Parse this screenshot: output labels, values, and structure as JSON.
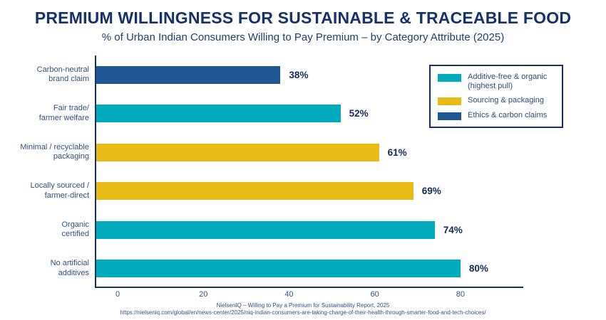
{
  "header": {
    "title": "PREMIUM WILLINGNESS FOR SUSTAINABLE & TRACEABLE FOOD",
    "subtitle": "% of Urban Indian Consumers Willing to Pay Premium – by Category Attribute (2025)"
  },
  "source": {
    "line1": "NielsenIQ – Willing to Pay a Premium for Sustainability Report, 2025",
    "line2": "https://nielseniq.com/global/en/news-center/2025/niq-indian-consumers-are-taking-charge-of-their-health-through-smarter-food-and-tech-choices/"
  },
  "colors": {
    "teal": "#00ABBE",
    "yellow": "#E8BB16",
    "navy_bar": "#1F5795",
    "navy_dark": "#16316B",
    "label_text": "#33517E"
  },
  "chart_data": {
    "type": "bar",
    "orientation": "horizontal",
    "title": "PREMIUM WILLINGNESS FOR SUSTAINABLE & TRACEABLE FOOD",
    "subtitle": "% of Urban Indian Consumers Willing to Pay Premium – by Category Attribute (2025)",
    "categories": [
      "Carbon-neutral brand claim",
      "Fair trade/ farmer welfare",
      "Minimal / recyclable packaging",
      "Locally sourced / farmer-direct",
      "Organic certified",
      "No artificial additives"
    ],
    "category_lines": [
      [
        "Carbon-neutral",
        "brand claim"
      ],
      [
        "Fair trade/",
        "farmer welfare"
      ],
      [
        "Minimal / recyclable",
        "packaging"
      ],
      [
        "Locally sourced /",
        "farmer-direct"
      ],
      [
        "Organic",
        "certified"
      ],
      [
        "No artificial",
        "additives"
      ]
    ],
    "values": [
      38,
      52,
      61,
      69,
      74,
      80
    ],
    "value_labels": [
      "38%",
      "52%",
      "61%",
      "69%",
      "74%",
      "80%"
    ],
    "bar_colors": [
      "#1F5795",
      "#00ABBE",
      "#E8BB16",
      "#E8BB16",
      "#00ABBE",
      "#00ABBE"
    ],
    "groups": [
      "Ethics & carbon claims",
      "Additive-free & organic (highest pull)",
      "Sourcing & packaging",
      "Sourcing & packaging",
      "Additive-free & organic (highest pull)",
      "Additive-free & organic (highest pull)"
    ],
    "xticks": [
      0,
      20,
      40,
      60,
      80
    ],
    "xlim": [
      -5,
      95
    ],
    "xlabel": "",
    "ylabel": "",
    "grid": false,
    "legend": {
      "position": "top-right",
      "entries": [
        {
          "lines": [
            "Additive-free & organic",
            "(highest pull)"
          ],
          "color": "#00ABBE"
        },
        {
          "lines": [
            "Sourcing & packaging"
          ],
          "color": "#E8BB16"
        },
        {
          "lines": [
            "Ethics & carbon claims"
          ],
          "color": "#1F5795"
        }
      ]
    }
  }
}
